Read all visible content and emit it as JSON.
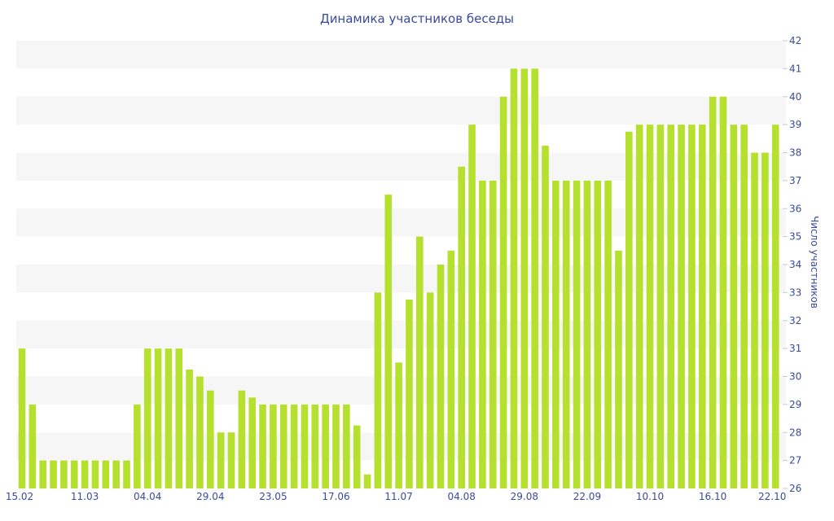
{
  "chart_data": {
    "type": "bar",
    "title": "Динамика участников беседы",
    "ylabel": "Число участников",
    "xlabel": "",
    "ylim": [
      26,
      42
    ],
    "yticks": [
      26,
      27,
      28,
      29,
      30,
      31,
      32,
      33,
      34,
      35,
      36,
      37,
      38,
      39,
      40,
      41,
      42
    ],
    "y_axis_side": "right",
    "grid": "horizontal alternating bands",
    "bar_color": "#b5e02e",
    "band_color": "#f6f6f6",
    "text_color": "#3a4a9a",
    "xtick_labels": [
      {
        "index": 0,
        "label": "15.02"
      },
      {
        "index": 6,
        "label": "11.03"
      },
      {
        "index": 12,
        "label": "04.04"
      },
      {
        "index": 18,
        "label": "29.04"
      },
      {
        "index": 24,
        "label": "23.05"
      },
      {
        "index": 30,
        "label": "17.06"
      },
      {
        "index": 36,
        "label": "11.07"
      },
      {
        "index": 42,
        "label": "04.08"
      },
      {
        "index": 48,
        "label": "29.08"
      },
      {
        "index": 54,
        "label": "22.09"
      },
      {
        "index": 60,
        "label": "10.10"
      },
      {
        "index": 66,
        "label": "16.10"
      },
      {
        "index": 72,
        "label": "22.10"
      }
    ],
    "values": [
      31,
      29,
      27,
      27,
      27,
      27,
      27,
      27,
      27,
      27,
      27,
      29,
      31,
      31,
      31,
      31,
      30.25,
      30,
      29.5,
      28,
      28,
      29.5,
      29.25,
      29,
      29,
      29,
      29,
      29,
      29,
      29,
      29,
      29,
      28.25,
      26.5,
      33,
      36.5,
      30.5,
      32.75,
      35,
      33,
      34,
      34.5,
      37.5,
      39,
      37,
      37,
      40,
      41,
      41,
      41,
      38.25,
      37,
      37,
      37,
      37,
      37,
      37,
      34.5,
      38.75,
      39,
      39,
      39,
      39,
      39,
      39,
      39,
      40,
      40,
      39,
      39,
      38,
      38,
      39
    ]
  }
}
